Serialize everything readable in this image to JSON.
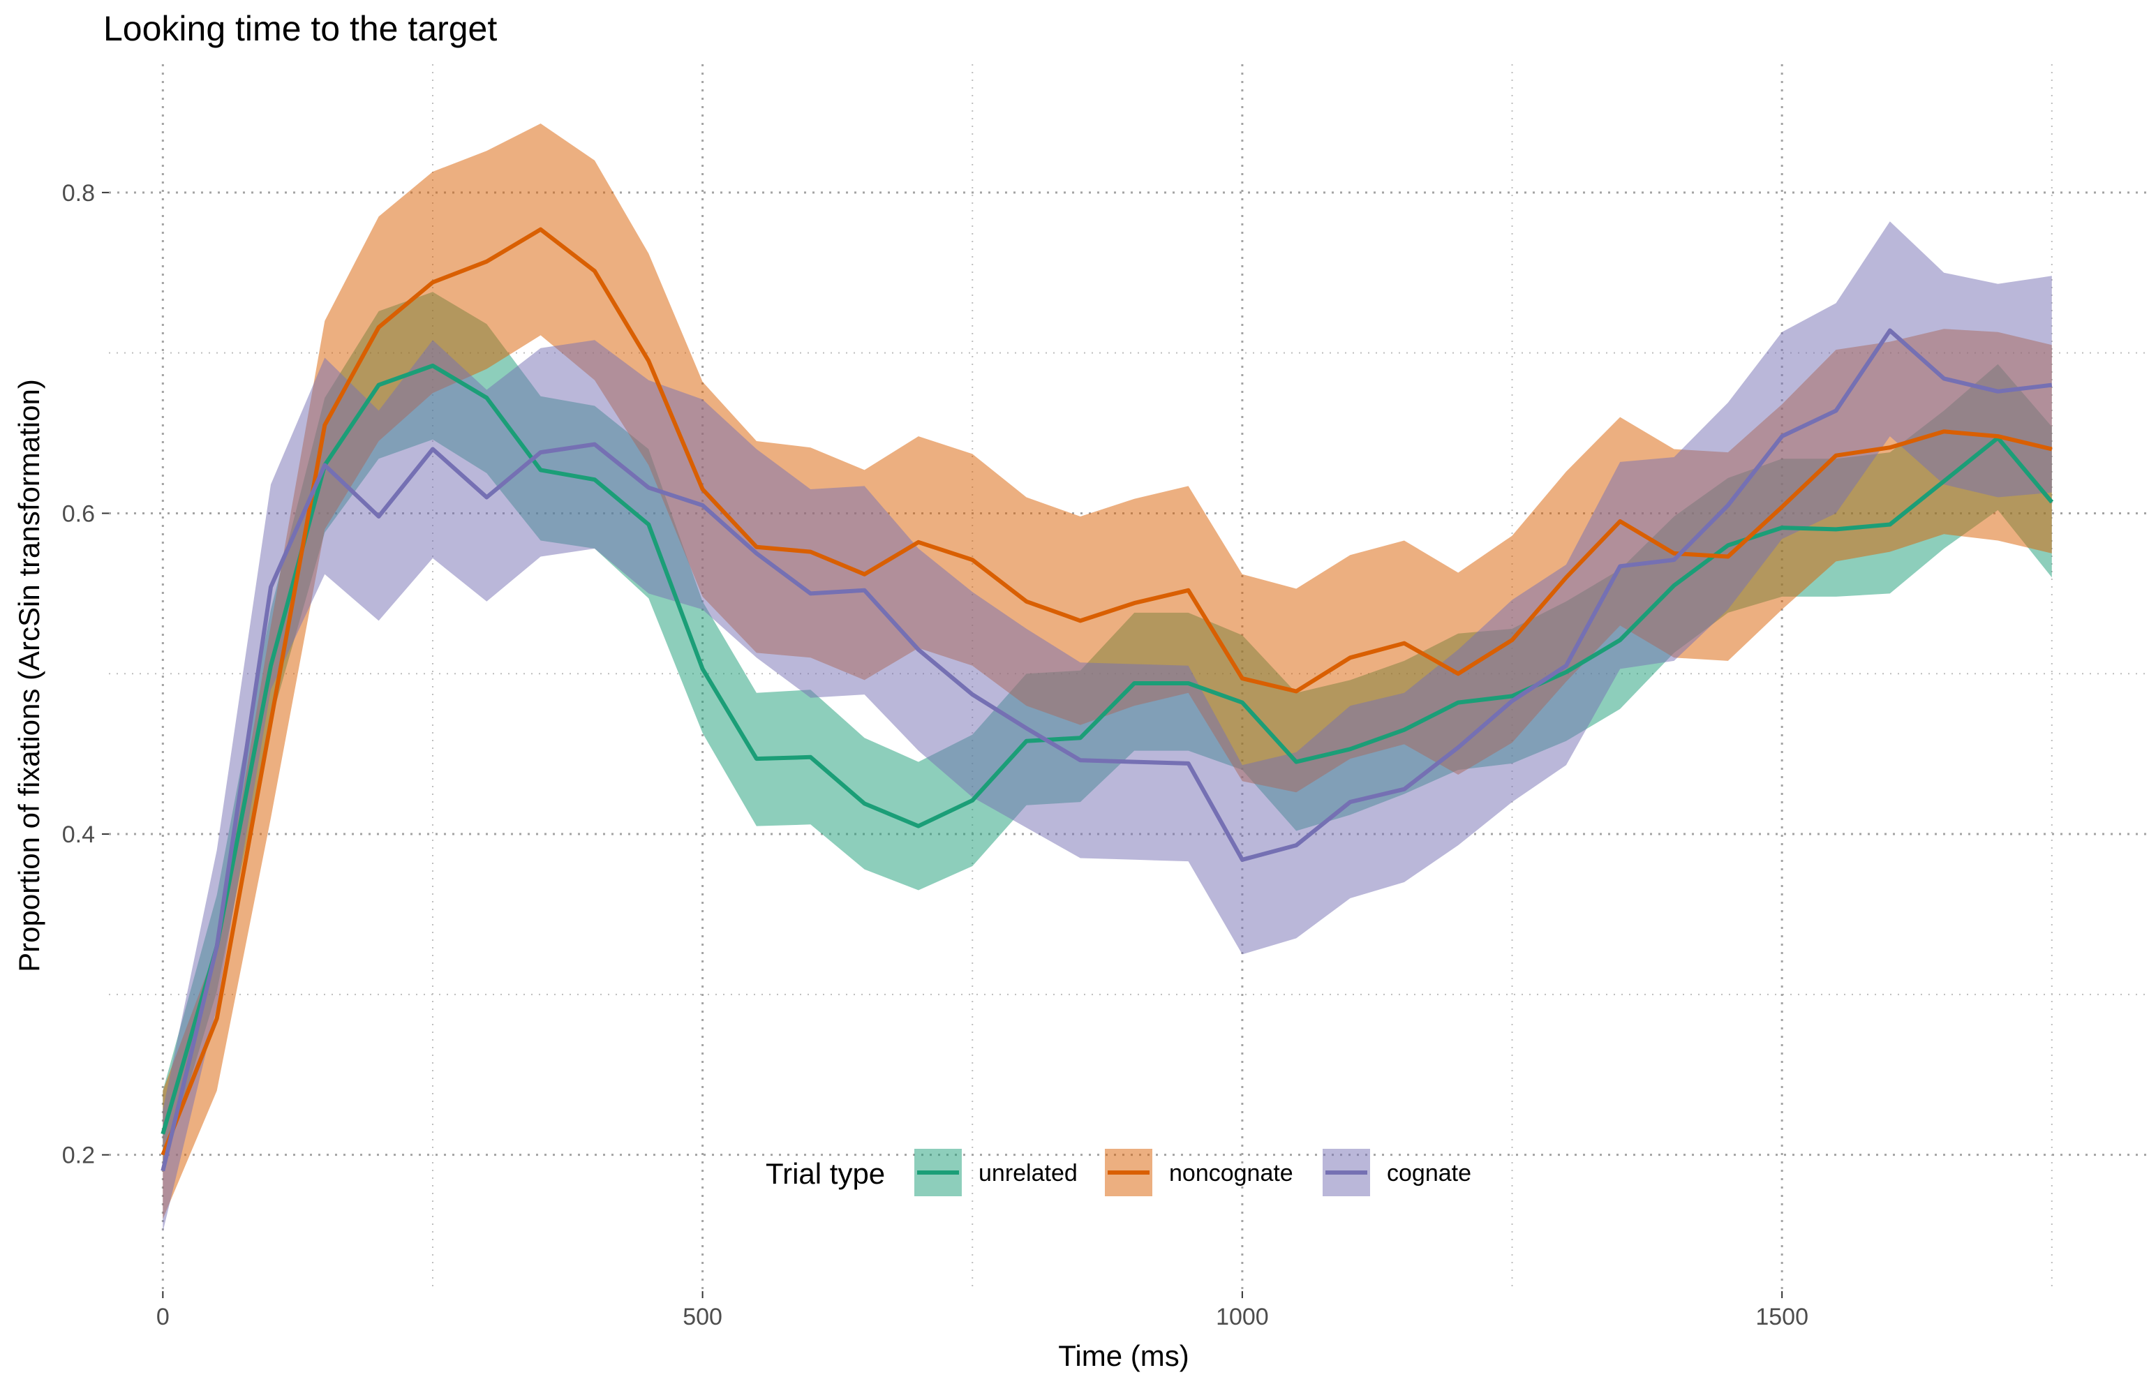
{
  "chart_data": {
    "type": "line",
    "title": "Looking time to the target",
    "xlabel": "Time (ms)",
    "ylabel": "Proportion of fixations (ArcSin transformation)",
    "xlim": [
      -50,
      1840
    ],
    "ylim": [
      0.115,
      0.88
    ],
    "x_ticks": [
      0,
      500,
      1000,
      1500
    ],
    "x_tick_labels": [
      "0",
      "500",
      "1000",
      "1500"
    ],
    "y_ticks": [
      0.2,
      0.4,
      0.6,
      0.8
    ],
    "y_tick_labels": [
      "0.2",
      "0.4",
      "0.6",
      "0.8"
    ],
    "x_minor_ticks": [
      250,
      750,
      1250,
      1750
    ],
    "y_minor_ticks": [
      0.3,
      0.5,
      0.7
    ],
    "grid": true,
    "legend": {
      "title": "Trial type",
      "position": "bottom-inside"
    },
    "x": [
      0,
      50,
      100,
      150,
      200,
      250,
      300,
      350,
      400,
      450,
      500,
      550,
      600,
      650,
      700,
      750,
      800,
      850,
      900,
      950,
      1000,
      1050,
      1100,
      1150,
      1200,
      1250,
      1300,
      1350,
      1400,
      1450,
      1500,
      1550,
      1600,
      1650,
      1700,
      1750
    ],
    "series": [
      {
        "name": "unrelated",
        "color": "#1b9e77",
        "values": [
          0.213,
          0.33,
          0.505,
          0.63,
          0.68,
          0.692,
          0.672,
          0.627,
          0.621,
          0.593,
          0.503,
          0.447,
          0.448,
          0.419,
          0.405,
          0.421,
          0.458,
          0.46,
          0.494,
          0.494,
          0.482,
          0.445,
          0.453,
          0.465,
          0.482,
          0.486,
          0.501,
          0.521,
          0.555,
          0.58,
          0.591,
          0.59,
          0.593,
          0.62,
          0.647,
          0.607
        ],
        "lower": [
          0.19,
          0.302,
          0.47,
          0.588,
          0.634,
          0.646,
          0.625,
          0.583,
          0.578,
          0.547,
          0.463,
          0.405,
          0.406,
          0.378,
          0.365,
          0.38,
          0.418,
          0.42,
          0.452,
          0.452,
          0.44,
          0.402,
          0.412,
          0.425,
          0.44,
          0.444,
          0.458,
          0.478,
          0.513,
          0.538,
          0.548,
          0.548,
          0.55,
          0.578,
          0.602,
          0.56
        ],
        "upper": [
          0.24,
          0.362,
          0.54,
          0.672,
          0.726,
          0.738,
          0.718,
          0.673,
          0.667,
          0.64,
          0.545,
          0.488,
          0.49,
          0.46,
          0.445,
          0.462,
          0.5,
          0.502,
          0.538,
          0.538,
          0.524,
          0.488,
          0.496,
          0.508,
          0.525,
          0.528,
          0.545,
          0.565,
          0.598,
          0.622,
          0.634,
          0.634,
          0.638,
          0.664,
          0.693,
          0.654
        ]
      },
      {
        "name": "noncognate",
        "color": "#d95f02",
        "values": [
          0.2,
          0.285,
          0.47,
          0.655,
          0.716,
          0.744,
          0.757,
          0.777,
          0.751,
          0.695,
          0.615,
          0.579,
          0.576,
          0.562,
          0.582,
          0.571,
          0.545,
          0.533,
          0.544,
          0.552,
          0.497,
          0.489,
          0.51,
          0.519,
          0.5,
          0.521,
          0.56,
          0.595,
          0.575,
          0.573,
          0.604,
          0.636,
          0.641,
          0.651,
          0.648,
          0.64
        ],
        "lower": [
          0.16,
          0.24,
          0.41,
          0.59,
          0.645,
          0.675,
          0.69,
          0.711,
          0.683,
          0.63,
          0.548,
          0.513,
          0.51,
          0.496,
          0.516,
          0.505,
          0.48,
          0.468,
          0.48,
          0.488,
          0.433,
          0.426,
          0.447,
          0.456,
          0.437,
          0.457,
          0.495,
          0.53,
          0.51,
          0.508,
          0.54,
          0.57,
          0.576,
          0.587,
          0.583,
          0.575
        ],
        "upper": [
          0.24,
          0.33,
          0.53,
          0.72,
          0.785,
          0.813,
          0.826,
          0.843,
          0.82,
          0.762,
          0.682,
          0.645,
          0.641,
          0.627,
          0.648,
          0.637,
          0.61,
          0.598,
          0.609,
          0.617,
          0.562,
          0.553,
          0.574,
          0.583,
          0.563,
          0.586,
          0.626,
          0.66,
          0.64,
          0.638,
          0.668,
          0.702,
          0.707,
          0.715,
          0.713,
          0.705
        ]
      },
      {
        "name": "cognate",
        "color": "#7570b3",
        "values": [
          0.19,
          0.33,
          0.554,
          0.63,
          0.598,
          0.64,
          0.61,
          0.638,
          0.643,
          0.616,
          0.605,
          0.575,
          0.55,
          0.552,
          0.515,
          0.487,
          0.466,
          0.446,
          0.445,
          0.444,
          0.384,
          0.393,
          0.42,
          0.428,
          0.454,
          0.483,
          0.505,
          0.567,
          0.571,
          0.605,
          0.648,
          0.664,
          0.714,
          0.684,
          0.676,
          0.68
        ],
        "lower": [
          0.152,
          0.292,
          0.49,
          0.562,
          0.533,
          0.572,
          0.545,
          0.573,
          0.578,
          0.55,
          0.54,
          0.51,
          0.485,
          0.487,
          0.452,
          0.423,
          0.404,
          0.385,
          0.384,
          0.383,
          0.325,
          0.335,
          0.36,
          0.37,
          0.393,
          0.42,
          0.443,
          0.503,
          0.508,
          0.54,
          0.584,
          0.6,
          0.648,
          0.618,
          0.61,
          0.613
        ],
        "upper": [
          0.228,
          0.39,
          0.618,
          0.697,
          0.664,
          0.708,
          0.677,
          0.703,
          0.708,
          0.683,
          0.671,
          0.64,
          0.615,
          0.617,
          0.578,
          0.551,
          0.528,
          0.507,
          0.506,
          0.505,
          0.443,
          0.451,
          0.48,
          0.488,
          0.515,
          0.546,
          0.568,
          0.632,
          0.635,
          0.669,
          0.713,
          0.731,
          0.782,
          0.75,
          0.743,
          0.748
        ]
      }
    ]
  }
}
